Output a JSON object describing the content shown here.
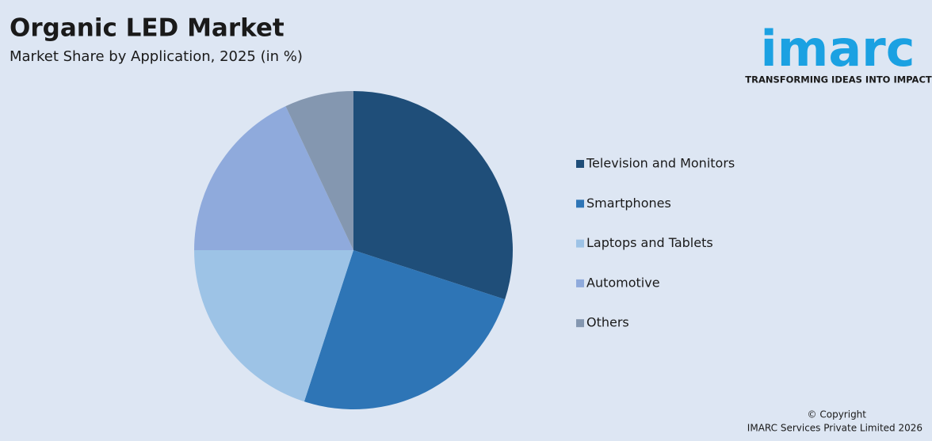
{
  "chart_data": {
    "type": "pie",
    "title": "Organic LED Market",
    "subtitle": "Market Share by Application, 2025 (in %)",
    "categories": [
      "Television and Monitors",
      "Smartphones",
      "Laptops and Tablets",
      "Automotive",
      "Others"
    ],
    "values": [
      30,
      25,
      20,
      18,
      7
    ],
    "colors": [
      "#1f4e79",
      "#2e75b6",
      "#9dc3e6",
      "#8faadc",
      "#8497b0"
    ],
    "legend": "right"
  },
  "logo": {
    "name": "imarc",
    "tagline": "TRANSFORMING IDEAS INTO IMPACT"
  },
  "footer": {
    "copyright": "© Copyright",
    "owner": "IMARC Services Private Limited 2026"
  }
}
